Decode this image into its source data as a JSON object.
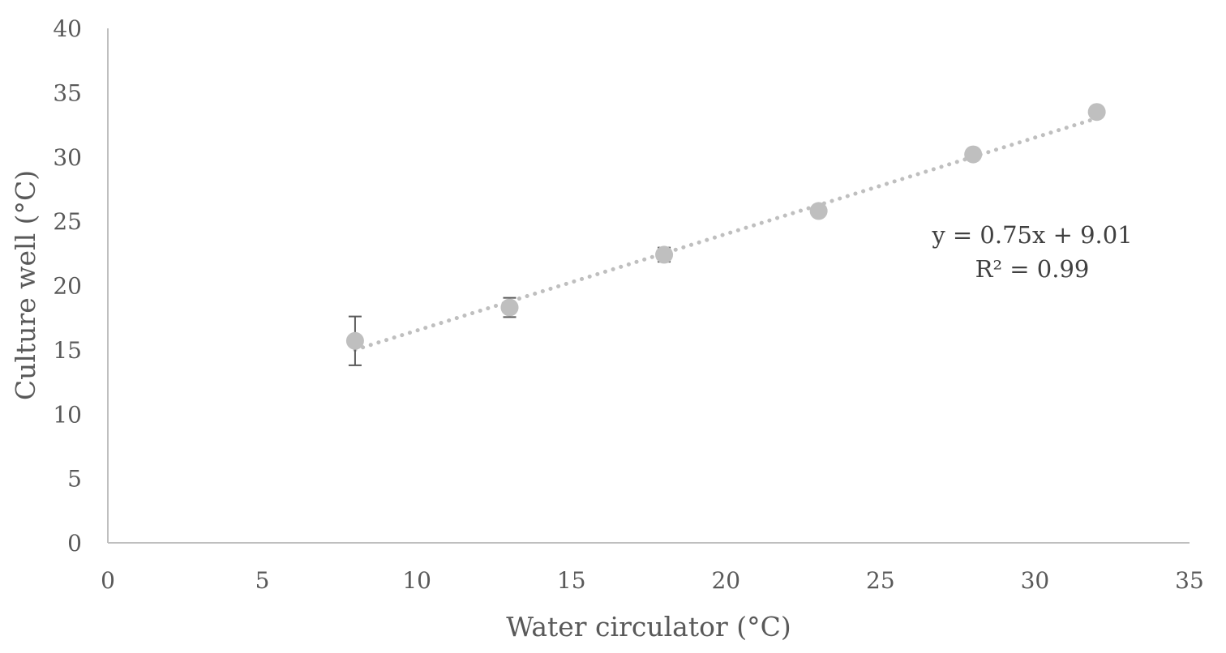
{
  "chart_data": {
    "type": "scatter",
    "title": "",
    "xlabel": "Water circulator (°C)",
    "ylabel": "Culture well (°C)",
    "xlim": [
      0,
      35
    ],
    "ylim": [
      0,
      40
    ],
    "x_ticks": [
      "0",
      "5",
      "10",
      "15",
      "20",
      "25",
      "30",
      "35"
    ],
    "y_ticks": [
      "0",
      "5",
      "10",
      "15",
      "20",
      "25",
      "30",
      "35",
      "40"
    ],
    "grid": false,
    "legend": "none",
    "series": [
      {
        "x": [
          8,
          13,
          18,
          23,
          28,
          32
        ],
        "y": [
          15.7,
          18.3,
          22.4,
          25.8,
          30.2,
          33.5
        ],
        "error": [
          1.9,
          0.75,
          0.55,
          0.3,
          0.3,
          0.3
        ],
        "color": "#bfbfbf"
      }
    ],
    "trendline": {
      "slope": 0.75,
      "intercept": 9.01,
      "x_range": [
        8,
        32
      ],
      "style": "dotted",
      "color": "#bfbfbf"
    },
    "annotations": {
      "equation": "y = 0.75x + 9.01",
      "r_squared": "R² = 0.99"
    },
    "colors": {
      "axis": "#bfbfbf",
      "error_bar": "#595959",
      "text": "#595959"
    }
  }
}
